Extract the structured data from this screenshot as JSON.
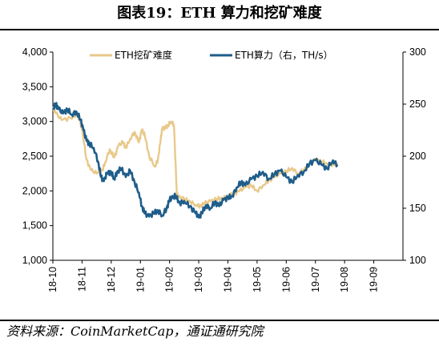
{
  "title": "图表19：ETH 算力和挖矿难度",
  "source": "资料来源：CoinMarketCap，通证通研究院",
  "chart_data": {
    "type": "line",
    "x_tick_labels": [
      "18-10",
      "18-11",
      "18-12",
      "19-01",
      "19-02",
      "19-03",
      "19-04",
      "19-05",
      "19-06",
      "19-07",
      "19-08",
      "19-09"
    ],
    "y_left": {
      "ylim": [
        1000,
        4000
      ],
      "ticks": [
        "1,000",
        "1,500",
        "2,000",
        "2,500",
        "3,000",
        "3,500",
        "4,000"
      ]
    },
    "y_right": {
      "ylim": [
        100,
        300
      ],
      "ticks": [
        "100",
        "150",
        "200",
        "250",
        "300"
      ]
    },
    "legend_position": "top-center",
    "series": [
      {
        "name": "ETH挖矿难度",
        "axis": "left",
        "color": "#e8c98a",
        "points": [
          [
            0.0,
            3200
          ],
          [
            0.1,
            3120
          ],
          [
            0.3,
            3020
          ],
          [
            0.6,
            3050
          ],
          [
            0.85,
            3100
          ],
          [
            1.0,
            2900
          ],
          [
            1.15,
            2450
          ],
          [
            1.3,
            2300
          ],
          [
            1.5,
            2250
          ],
          [
            1.7,
            2300
          ],
          [
            1.8,
            2420
          ],
          [
            1.95,
            2600
          ],
          [
            2.1,
            2480
          ],
          [
            2.25,
            2650
          ],
          [
            2.4,
            2700
          ],
          [
            2.5,
            2620
          ],
          [
            2.65,
            2750
          ],
          [
            2.8,
            2850
          ],
          [
            2.95,
            2700
          ],
          [
            3.05,
            2880
          ],
          [
            3.15,
            2800
          ],
          [
            3.3,
            2500
          ],
          [
            3.5,
            2350
          ],
          [
            3.6,
            2450
          ],
          [
            3.7,
            2750
          ],
          [
            3.75,
            2900
          ],
          [
            3.85,
            2900
          ],
          [
            3.95,
            2950
          ],
          [
            4.05,
            3000
          ],
          [
            4.15,
            2950
          ],
          [
            4.25,
            1950
          ],
          [
            4.35,
            1900
          ],
          [
            4.5,
            1880
          ],
          [
            4.7,
            1850
          ],
          [
            4.9,
            1800
          ],
          [
            5.05,
            1780
          ],
          [
            5.2,
            1820
          ],
          [
            5.4,
            1850
          ],
          [
            5.6,
            1880
          ],
          [
            5.8,
            1900
          ],
          [
            6.0,
            1920
          ],
          [
            6.2,
            1960
          ],
          [
            6.4,
            2000
          ],
          [
            6.6,
            2050
          ],
          [
            6.8,
            2080
          ],
          [
            7.0,
            2000
          ],
          [
            7.2,
            2080
          ],
          [
            7.4,
            2150
          ],
          [
            7.6,
            2200
          ],
          [
            7.8,
            2250
          ],
          [
            8.0,
            2280
          ],
          [
            8.2,
            2330
          ],
          [
            8.4,
            2250
          ],
          [
            8.6,
            2300
          ],
          [
            8.8,
            2380
          ],
          [
            9.0,
            2450
          ],
          [
            9.2,
            2420
          ],
          [
            9.4,
            2400
          ],
          [
            9.6,
            2380
          ],
          [
            9.75,
            2400
          ]
        ]
      },
      {
        "name": "ETH算力（右，TH/s）",
        "axis": "right",
        "color": "#1f5d8a",
        "points": [
          [
            0.0,
            245
          ],
          [
            0.1,
            250
          ],
          [
            0.2,
            245
          ],
          [
            0.35,
            241
          ],
          [
            0.5,
            245
          ],
          [
            0.65,
            240
          ],
          [
            0.8,
            243
          ],
          [
            0.95,
            235
          ],
          [
            1.05,
            225
          ],
          [
            1.15,
            215
          ],
          [
            1.25,
            212
          ],
          [
            1.4,
            208
          ],
          [
            1.55,
            195
          ],
          [
            1.65,
            180
          ],
          [
            1.75,
            176
          ],
          [
            1.85,
            183
          ],
          [
            2.0,
            185
          ],
          [
            2.1,
            178
          ],
          [
            2.2,
            185
          ],
          [
            2.35,
            188
          ],
          [
            2.5,
            180
          ],
          [
            2.65,
            186
          ],
          [
            2.8,
            175
          ],
          [
            2.95,
            165
          ],
          [
            3.05,
            152
          ],
          [
            3.15,
            145
          ],
          [
            3.3,
            142
          ],
          [
            3.45,
            145
          ],
          [
            3.6,
            148
          ],
          [
            3.75,
            143
          ],
          [
            3.9,
            150
          ],
          [
            4.0,
            158
          ],
          [
            4.1,
            160
          ],
          [
            4.2,
            162
          ],
          [
            4.35,
            155
          ],
          [
            4.5,
            157
          ],
          [
            4.7,
            152
          ],
          [
            4.9,
            145
          ],
          [
            5.0,
            141
          ],
          [
            5.1,
            145
          ],
          [
            5.25,
            153
          ],
          [
            5.4,
            150
          ],
          [
            5.55,
            156
          ],
          [
            5.7,
            152
          ],
          [
            5.85,
            158
          ],
          [
            6.0,
            160
          ],
          [
            6.15,
            162
          ],
          [
            6.3,
            170
          ],
          [
            6.45,
            175
          ],
          [
            6.6,
            172
          ],
          [
            6.8,
            178
          ],
          [
            7.0,
            181
          ],
          [
            7.2,
            185
          ],
          [
            7.4,
            178
          ],
          [
            7.6,
            183
          ],
          [
            7.8,
            186
          ],
          [
            8.0,
            180
          ],
          [
            8.2,
            175
          ],
          [
            8.4,
            182
          ],
          [
            8.6,
            185
          ],
          [
            8.8,
            193
          ],
          [
            9.0,
            196
          ],
          [
            9.2,
            192
          ],
          [
            9.4,
            188
          ],
          [
            9.6,
            196
          ],
          [
            9.75,
            192
          ]
        ]
      }
    ]
  }
}
